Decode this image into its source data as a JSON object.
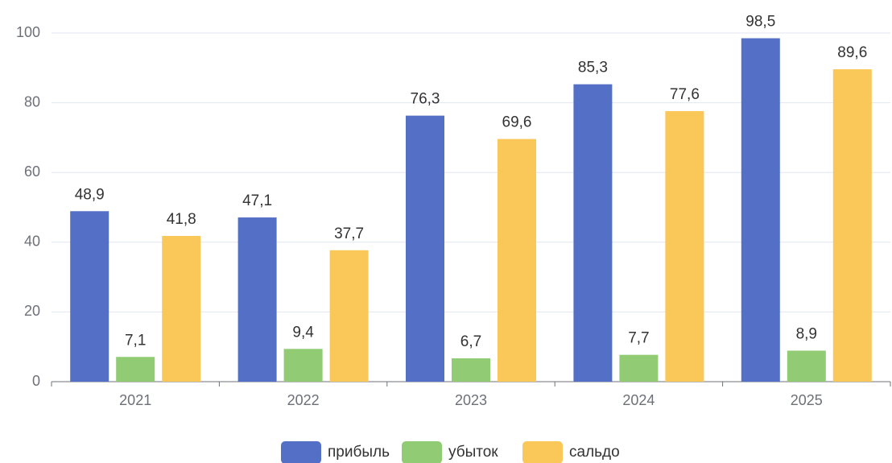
{
  "chart_data": {
    "type": "bar",
    "categories": [
      "2021",
      "2022",
      "2023",
      "2024",
      "2025"
    ],
    "series": [
      {
        "name": "прибыль",
        "color": "#5470c6",
        "values": [
          48.9,
          47.1,
          76.3,
          85.3,
          98.5
        ],
        "value_labels": [
          "48,9",
          "47,1",
          "76,3",
          "85,3",
          "98,5"
        ]
      },
      {
        "name": "убыток",
        "color": "#91cc75",
        "values": [
          7.1,
          9.4,
          6.7,
          7.7,
          8.9
        ],
        "value_labels": [
          "7,1",
          "9,4",
          "6,7",
          "7,7",
          "8,9"
        ]
      },
      {
        "name": "сальдо",
        "color": "#fac858",
        "values": [
          41.8,
          37.7,
          69.6,
          77.6,
          89.6
        ],
        "value_labels": [
          "41,8",
          "37,7",
          "69,6",
          "77,6",
          "89,6"
        ]
      }
    ],
    "ylim": [
      0,
      100
    ],
    "yticks": [
      0,
      20,
      40,
      60,
      80,
      100
    ],
    "grid": true
  }
}
